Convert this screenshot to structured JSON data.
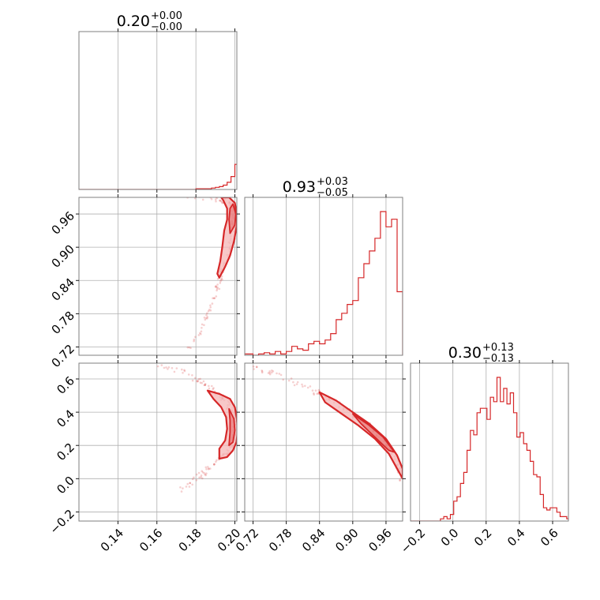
{
  "chart_data": {
    "type": "corner",
    "colors": {
      "series": "#d62728",
      "fill": "#f4b6b6",
      "frame": "#7f7f7f",
      "grid": "#b0b0b0"
    },
    "grid": true,
    "parameters": [
      {
        "median": "0.20",
        "plus": "+0.00",
        "minus": "−0.00",
        "range": [
          0.12,
          0.201
        ]
      },
      {
        "median": "0.93",
        "plus": "+0.03",
        "minus": "−0.05",
        "range": [
          0.705,
          0.99
        ]
      },
      {
        "median": "0.30",
        "plus": "+0.13",
        "minus": "−0.13",
        "range": [
          -0.255,
          0.695
        ]
      }
    ],
    "ticks": [
      {
        "values": [
          0.14,
          0.16,
          0.18,
          0.2
        ],
        "labels": [
          "0.14",
          "0.16",
          "0.18",
          "0.20"
        ]
      },
      {
        "values": [
          0.72,
          0.78,
          0.84,
          0.9,
          0.96
        ],
        "labels": [
          "0.72",
          "0.78",
          "0.84",
          "0.90",
          "0.96"
        ]
      },
      {
        "values": [
          -0.2,
          0.0,
          0.2,
          0.4,
          0.6
        ],
        "labels": [
          "−0.2",
          "0.0",
          "0.2",
          "0.4",
          "0.6"
        ]
      }
    ],
    "histograms": [
      {
        "param": 0,
        "bin_start": 0.12,
        "bin_width": 0.002,
        "counts": [
          0,
          0,
          0,
          0,
          0,
          0,
          0,
          0,
          0,
          0,
          0,
          0,
          0,
          0,
          0,
          0,
          0,
          0,
          0,
          0,
          0,
          0,
          0,
          0,
          0,
          0,
          0,
          0,
          0,
          0,
          1,
          1,
          1,
          1,
          2,
          3,
          4,
          6,
          10,
          18,
          35,
          50,
          95,
          160,
          200,
          175,
          60
        ]
      },
      {
        "param": 1,
        "x": [
          0.705,
          0.715,
          0.725,
          0.735,
          0.745,
          0.755,
          0.765,
          0.775,
          0.785,
          0.795,
          0.805,
          0.815,
          0.825,
          0.835,
          0.845,
          0.855,
          0.865,
          0.875,
          0.885,
          0.895,
          0.905,
          0.915,
          0.925,
          0.935,
          0.945,
          0.955,
          0.965,
          0.975,
          0.985
        ],
        "counts": [
          1,
          1,
          0,
          1,
          2,
          1,
          3,
          1,
          3,
          7,
          5,
          4,
          9,
          11,
          9,
          12,
          17,
          28,
          33,
          40,
          43,
          61,
          72,
          82,
          92,
          113,
          101,
          107,
          50
        ]
      },
      {
        "param": 2,
        "bin_start": -0.255,
        "bin_width": 0.02,
        "counts": [
          0,
          0,
          0,
          0,
          0,
          0,
          0,
          0,
          0,
          1,
          2,
          1,
          3,
          9,
          11,
          17,
          22,
          32,
          41,
          39,
          49,
          51,
          51,
          46,
          56,
          54,
          65,
          54,
          60,
          53,
          58,
          49,
          38,
          40,
          35,
          32,
          27,
          21,
          20,
          12,
          6,
          5,
          6,
          6,
          4,
          2,
          2,
          1
        ]
      }
    ],
    "scatter": [
      {
        "x_param": 0,
        "y_param": 1,
        "ridge": [
          [
            0.175,
            0.715
          ],
          [
            0.182,
            0.745
          ],
          [
            0.186,
            0.775
          ],
          [
            0.189,
            0.805
          ],
          [
            0.191,
            0.83
          ],
          [
            0.193,
            0.85
          ],
          [
            0.195,
            0.87
          ],
          [
            0.197,
            0.89
          ],
          [
            0.1985,
            0.91
          ],
          [
            0.1995,
            0.935
          ],
          [
            0.2,
            0.955
          ],
          [
            0.1995,
            0.97
          ],
          [
            0.197,
            0.98
          ],
          [
            0.192,
            0.986
          ],
          [
            0.185,
            0.99
          ],
          [
            0.176,
            0.99
          ]
        ],
        "contour_outer": [
          [
            0.192,
            0.845
          ],
          [
            0.195,
            0.865
          ],
          [
            0.1975,
            0.885
          ],
          [
            0.1995,
            0.91
          ],
          [
            0.201,
            0.94
          ],
          [
            0.201,
            0.96
          ],
          [
            0.2,
            0.98
          ],
          [
            0.197,
            0.99
          ],
          [
            0.193,
            0.99
          ],
          [
            0.194,
            0.985
          ],
          [
            0.196,
            0.97
          ],
          [
            0.196,
            0.95
          ],
          [
            0.1945,
            0.93
          ],
          [
            0.1935,
            0.9
          ],
          [
            0.1925,
            0.875
          ],
          [
            0.191,
            0.852
          ]
        ],
        "contour_inner": [
          [
            0.1975,
            0.925
          ],
          [
            0.2,
            0.94
          ],
          [
            0.2005,
            0.96
          ],
          [
            0.199,
            0.978
          ],
          [
            0.1975,
            0.97
          ],
          [
            0.197,
            0.95
          ]
        ]
      },
      {
        "x_param": 0,
        "y_param": 2,
        "ridge": [
          [
            0.16,
            0.69
          ],
          [
            0.172,
            0.65
          ],
          [
            0.18,
            0.6
          ],
          [
            0.185,
            0.56
          ],
          [
            0.19,
            0.52
          ],
          [
            0.195,
            0.47
          ],
          [
            0.198,
            0.42
          ],
          [
            0.2,
            0.36
          ],
          [
            0.2005,
            0.3
          ],
          [
            0.2,
            0.24
          ],
          [
            0.198,
            0.2
          ],
          [
            0.195,
            0.15
          ],
          [
            0.191,
            0.1
          ],
          [
            0.187,
            0.06
          ],
          [
            0.183,
            0.02
          ],
          [
            0.178,
            -0.02
          ],
          [
            0.172,
            -0.07
          ]
        ],
        "contour_outer": [
          [
            0.186,
            0.53
          ],
          [
            0.192,
            0.51
          ],
          [
            0.1975,
            0.48
          ],
          [
            0.2,
            0.43
          ],
          [
            0.201,
            0.36
          ],
          [
            0.2015,
            0.29
          ],
          [
            0.2008,
            0.22
          ],
          [
            0.199,
            0.17
          ],
          [
            0.196,
            0.13
          ],
          [
            0.192,
            0.12
          ],
          [
            0.192,
            0.18
          ],
          [
            0.195,
            0.23
          ],
          [
            0.196,
            0.3
          ],
          [
            0.1955,
            0.37
          ],
          [
            0.193,
            0.43
          ],
          [
            0.189,
            0.48
          ]
        ],
        "contour_inner": [
          [
            0.197,
            0.42
          ],
          [
            0.1995,
            0.36
          ],
          [
            0.2,
            0.29
          ],
          [
            0.199,
            0.22
          ],
          [
            0.197,
            0.2
          ],
          [
            0.1975,
            0.28
          ],
          [
            0.1975,
            0.35
          ]
        ]
      },
      {
        "x_param": 1,
        "y_param": 2,
        "ridge": [
          [
            0.72,
            0.67
          ],
          [
            0.75,
            0.64
          ],
          [
            0.78,
            0.6
          ],
          [
            0.81,
            0.56
          ],
          [
            0.84,
            0.51
          ],
          [
            0.87,
            0.46
          ],
          [
            0.9,
            0.39
          ],
          [
            0.92,
            0.34
          ],
          [
            0.94,
            0.28
          ],
          [
            0.96,
            0.2
          ],
          [
            0.975,
            0.12
          ],
          [
            0.985,
            0.04
          ],
          [
            0.99,
            -0.02
          ]
        ],
        "contour_outer": [
          [
            0.84,
            0.52
          ],
          [
            0.87,
            0.47
          ],
          [
            0.9,
            0.4
          ],
          [
            0.93,
            0.33
          ],
          [
            0.96,
            0.24
          ],
          [
            0.98,
            0.14
          ],
          [
            0.99,
            0.06
          ],
          [
            0.99,
            0.0
          ],
          [
            0.98,
            0.06
          ],
          [
            0.965,
            0.15
          ],
          [
            0.94,
            0.24
          ],
          [
            0.91,
            0.32
          ],
          [
            0.88,
            0.39
          ],
          [
            0.85,
            0.46
          ]
        ],
        "contour_inner": [
          [
            0.9,
            0.39
          ],
          [
            0.93,
            0.32
          ],
          [
            0.955,
            0.25
          ],
          [
            0.975,
            0.16
          ],
          [
            0.965,
            0.17
          ],
          [
            0.94,
            0.25
          ],
          [
            0.915,
            0.33
          ]
        ]
      }
    ]
  }
}
